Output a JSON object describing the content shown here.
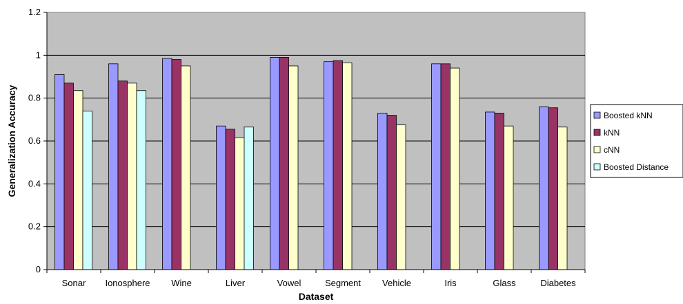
{
  "chart_data": {
    "type": "bar",
    "title": "",
    "xlabel": "Dataset",
    "ylabel": "Generalization Accuracy",
    "ylim": [
      0,
      1.2
    ],
    "yticks": [
      "0",
      "0.2",
      "0.4",
      "0.6",
      "0.8",
      "1",
      "1.2"
    ],
    "grid": true,
    "legend_position": "right",
    "plot_background": "#c0c0c0",
    "categories": [
      "Sonar",
      "Ionosphere",
      "Wine",
      "Liver",
      "Vowel",
      "Segment",
      "Vehicle",
      "Iris",
      "Glass",
      "Diabetes"
    ],
    "series": [
      {
        "name": "Boosted kNN",
        "color": "#9999ff",
        "values": [
          0.91,
          0.96,
          0.985,
          0.67,
          0.99,
          0.97,
          0.73,
          0.96,
          0.735,
          0.76
        ]
      },
      {
        "name": "kNN",
        "color": "#993366",
        "values": [
          0.87,
          0.88,
          0.98,
          0.655,
          0.99,
          0.975,
          0.72,
          0.96,
          0.73,
          0.755
        ]
      },
      {
        "name": "cNN",
        "color": "#ffffcc",
        "values": [
          0.835,
          0.87,
          0.95,
          0.615,
          0.95,
          0.965,
          0.675,
          0.94,
          0.67,
          0.665
        ]
      },
      {
        "name": "Boosted Distance",
        "color": "#ccffff",
        "values": [
          0.74,
          0.835,
          null,
          0.665,
          null,
          null,
          null,
          null,
          null,
          null
        ]
      }
    ]
  }
}
